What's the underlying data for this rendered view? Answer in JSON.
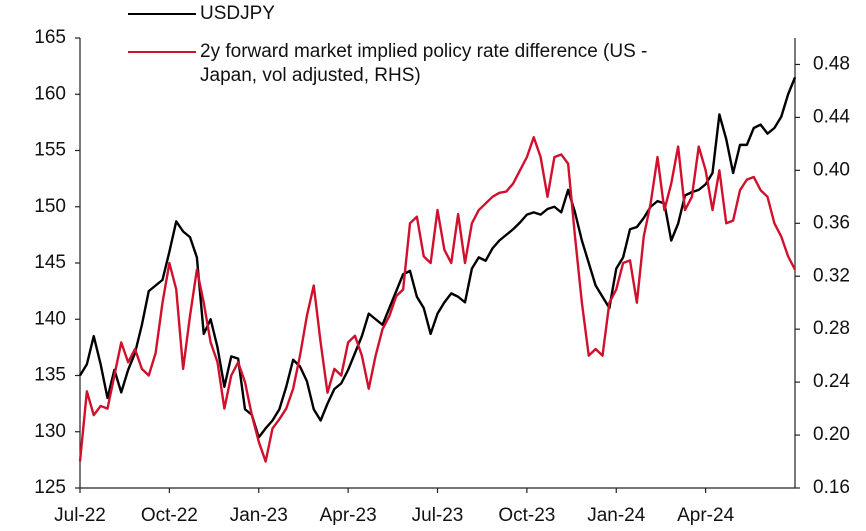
{
  "chart_data": {
    "type": "line",
    "categories": [
      "Jul-22",
      null,
      null,
      null,
      null,
      null,
      null,
      null,
      null,
      null,
      null,
      null,
      null,
      "Oct-22",
      null,
      null,
      null,
      null,
      null,
      null,
      null,
      null,
      null,
      null,
      null,
      null,
      "Jan-23",
      null,
      null,
      null,
      null,
      null,
      null,
      null,
      null,
      null,
      null,
      null,
      null,
      "Apr-23",
      null,
      null,
      null,
      null,
      null,
      null,
      null,
      null,
      null,
      null,
      null,
      null,
      "Jul-23",
      null,
      null,
      null,
      null,
      null,
      null,
      null,
      null,
      null,
      null,
      null,
      null,
      "Oct-23",
      null,
      null,
      null,
      null,
      null,
      null,
      null,
      null,
      null,
      null,
      null,
      null,
      "Jan-24",
      null,
      null,
      null,
      null,
      null,
      null,
      null,
      null,
      null,
      null,
      null,
      null,
      "Apr-24",
      null,
      null,
      null,
      null,
      null,
      null,
      null,
      null,
      null,
      null,
      null,
      null,
      null
    ],
    "series": [
      {
        "name": "USDJPY",
        "color": "#000000",
        "values": [
          135,
          136,
          138.5,
          136,
          133,
          135.5,
          133.5,
          135.5,
          137,
          139.5,
          142.5,
          143,
          143.5,
          146,
          148.7,
          147.8,
          147.3,
          145.5,
          138.7,
          140,
          137.5,
          134,
          136.7,
          136.5,
          132,
          131.5,
          129.5,
          130.3,
          131,
          132,
          134,
          136.4,
          135.8,
          134.5,
          132,
          131,
          132.5,
          133.8,
          134.3,
          135.5,
          137,
          138.5,
          140.5,
          140,
          139.5,
          141,
          142.5,
          144,
          144.3,
          142,
          141,
          138.7,
          140.5,
          141.5,
          142.3,
          142,
          141.5,
          144.5,
          145.5,
          145.2,
          146.3,
          147,
          147.5,
          148,
          148.6,
          149.3,
          149.5,
          149.3,
          149.8,
          150,
          149.5,
          151.5,
          149.5,
          147,
          145,
          143,
          142,
          141,
          144.5,
          145.5,
          148,
          148.2,
          149,
          150,
          150.5,
          150.3,
          147,
          148.5,
          151,
          151.3,
          151.5,
          152,
          153,
          158.2,
          156,
          153,
          155.5,
          155.5,
          157,
          157.3,
          156.5,
          157,
          158,
          160,
          161.5
        ]
      },
      {
        "name": "2y forward market implied policy rate difference (US - Japan, vol adjusted, RHS)",
        "color": "#d0102c",
        "axis": "y2",
        "values": [
          0.18,
          0.233,
          0.215,
          0.222,
          0.22,
          0.245,
          0.27,
          0.255,
          0.265,
          0.25,
          0.245,
          0.262,
          0.3,
          0.33,
          0.31,
          0.25,
          0.29,
          0.325,
          0.3,
          0.27,
          0.255,
          0.22,
          0.245,
          0.255,
          0.24,
          0.215,
          0.195,
          0.18,
          0.205,
          0.212,
          0.22,
          0.235,
          0.26,
          0.29,
          0.313,
          0.27,
          0.232,
          0.25,
          0.245,
          0.27,
          0.275,
          0.26,
          0.235,
          0.26,
          0.28,
          0.29,
          0.305,
          0.31,
          0.36,
          0.365,
          0.335,
          0.33,
          0.37,
          0.34,
          0.33,
          0.367,
          0.33,
          0.36,
          0.37,
          0.375,
          0.38,
          0.383,
          0.384,
          0.39,
          0.4,
          0.41,
          0.425,
          0.41,
          0.38,
          0.41,
          0.412,
          0.405,
          0.35,
          0.3,
          0.26,
          0.265,
          0.26,
          0.3,
          0.31,
          0.33,
          0.332,
          0.3,
          0.35,
          0.375,
          0.41,
          0.37,
          0.39,
          0.418,
          0.37,
          0.38,
          0.418,
          0.4,
          0.37,
          0.4,
          0.36,
          0.362,
          0.385,
          0.393,
          0.395,
          0.385,
          0.38,
          0.36,
          0.35,
          0.335,
          0.325
        ]
      }
    ],
    "ylim": [
      125,
      165
    ],
    "yticks": [
      125,
      130,
      135,
      140,
      145,
      150,
      155,
      160,
      165
    ],
    "y2lim": [
      0.16,
      0.5
    ],
    "y2ticks": [
      {
        "value": 0.16,
        "label": "0.16"
      },
      {
        "value": 0.2,
        "label": "0.20"
      },
      {
        "value": 0.24,
        "label": "0.24"
      },
      {
        "value": 0.28,
        "label": "0.28"
      },
      {
        "value": 0.32,
        "label": "0.32"
      },
      {
        "value": 0.36,
        "label": "0.36"
      },
      {
        "value": 0.4,
        "label": "0.40"
      },
      {
        "value": 0.44,
        "label": "0.44"
      },
      {
        "value": 0.48,
        "label": "0.48"
      }
    ],
    "grid": false,
    "legend": "top-left"
  }
}
